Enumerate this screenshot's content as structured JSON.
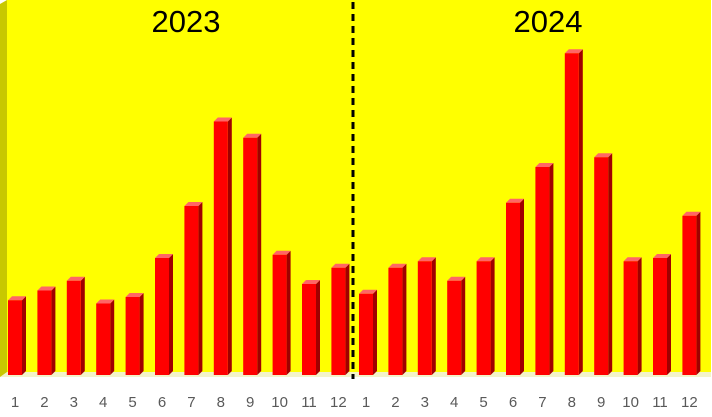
{
  "chart_data": {
    "type": "bar",
    "style": "3d-column",
    "colors": {
      "plot_background": "#ffff00",
      "floor": "#f3f3c9",
      "left_wall": "#c8c800",
      "bar_front": "#ff0000",
      "bar_side": "#a00000",
      "bar_top": "#ff6666",
      "divider": "#000000",
      "tick_label": "#595959",
      "panel_title": "#000000"
    },
    "ylim": [
      0,
      100
    ],
    "grid": false,
    "legend": "none",
    "panels": [
      {
        "title": "2023",
        "categories": [
          "1",
          "2",
          "3",
          "4",
          "5",
          "6",
          "7",
          "8",
          "9",
          "10",
          "11",
          "12"
        ],
        "values": [
          23,
          26,
          29,
          22,
          24,
          36,
          52,
          78,
          73,
          37,
          28,
          33
        ]
      },
      {
        "title": "2024",
        "categories": [
          "1",
          "2",
          "3",
          "4",
          "5",
          "6",
          "7",
          "8",
          "9",
          "10",
          "11",
          "12"
        ],
        "values": [
          25,
          33,
          35,
          29,
          35,
          53,
          64,
          99,
          67,
          35,
          36,
          49
        ]
      }
    ]
  }
}
